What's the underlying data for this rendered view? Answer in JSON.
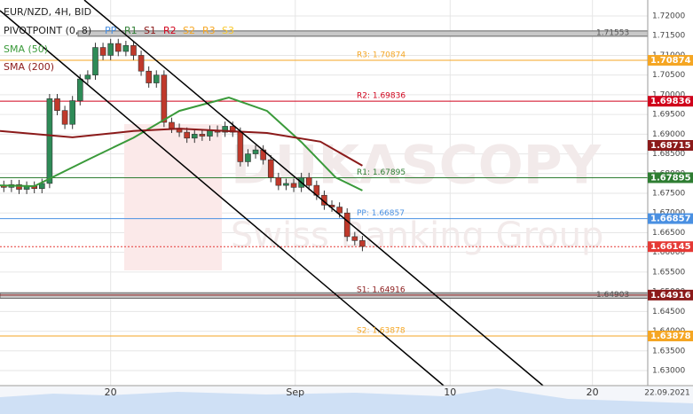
{
  "chart_data": {
    "type": "candlestick",
    "title": "EUR/NZD, 4H, BID",
    "date_label": "22.09.2021",
    "watermark": [
      "DUKASCOPY",
      "Swiss Banking Group"
    ],
    "pivot_legend": {
      "title": "PIVOTPOINT (0, 8)",
      "items": [
        {
          "name": "PP",
          "color": "#4a90e2"
        },
        {
          "name": "R1",
          "color": "#2e7d32"
        },
        {
          "name": "S1",
          "color": "#8b1a1a"
        },
        {
          "name": "R2",
          "color": "#d0021b"
        },
        {
          "name": "S2",
          "color": "#f5a623"
        },
        {
          "name": "R3",
          "color": "#f5a623"
        },
        {
          "name": "S3",
          "color": "#f8c830"
        }
      ]
    },
    "ylim": [
      1.62618,
      1.72405
    ],
    "yticks": [
      {
        "value": 1.72,
        "label": "1.72000"
      },
      {
        "value": 1.715,
        "label": "1.71500"
      },
      {
        "value": 1.71,
        "label": "1.71000"
      },
      {
        "value": 1.705,
        "label": "1.70500"
      },
      {
        "value": 1.7,
        "label": "1.70000"
      },
      {
        "value": 1.695,
        "label": "1.69500"
      },
      {
        "value": 1.69,
        "label": "1.69000"
      },
      {
        "value": 1.685,
        "label": "1.68500"
      },
      {
        "value": 1.68,
        "label": "1.68000"
      },
      {
        "value": 1.675,
        "label": "1.67500"
      },
      {
        "value": 1.67,
        "label": "1.67000"
      },
      {
        "value": 1.665,
        "label": "1.66500"
      },
      {
        "value": 1.66,
        "label": "1.66000"
      },
      {
        "value": 1.655,
        "label": "1.65500"
      },
      {
        "value": 1.65,
        "label": "1.65000"
      },
      {
        "value": 1.645,
        "label": "1.64500"
      },
      {
        "value": 1.64,
        "label": "1.64000"
      },
      {
        "value": 1.635,
        "label": "1.63500"
      },
      {
        "value": 1.63,
        "label": "1.63000"
      }
    ],
    "xlim": [
      0,
      169.8
    ],
    "xticks": [
      {
        "value": 29,
        "label": "20"
      },
      {
        "value": 77.4,
        "label": "Sep"
      },
      {
        "value": 118,
        "label": "10"
      },
      {
        "value": 155.3,
        "label": "20"
      }
    ],
    "up_color": "#2e8b57",
    "down_color": "#c0392b",
    "x": [
      1,
      3,
      5,
      7,
      9,
      11,
      13,
      15,
      17,
      19,
      21,
      23,
      25,
      27,
      29,
      31,
      33,
      35,
      37,
      39,
      41,
      43,
      45,
      47,
      49,
      51,
      53,
      55,
      57,
      59,
      61,
      63,
      65,
      67,
      69,
      71,
      73,
      75,
      77,
      79,
      81,
      83,
      85,
      87,
      89,
      91,
      93,
      95
    ],
    "open": [
      1.677,
      1.6765,
      1.6772,
      1.676,
      1.6768,
      1.6762,
      1.6775,
      1.699,
      1.696,
      1.6925,
      1.6985,
      1.704,
      1.705,
      1.712,
      1.71,
      1.713,
      1.711,
      1.7125,
      1.71,
      1.706,
      1.703,
      1.705,
      1.693,
      1.6915,
      1.6905,
      1.689,
      1.69,
      1.6895,
      1.691,
      1.6905,
      1.692,
      1.6905,
      1.683,
      1.685,
      1.686,
      1.6835,
      1.679,
      1.677,
      1.6775,
      1.6765,
      1.679,
      1.677,
      1.6745,
      1.672,
      1.6715,
      1.67,
      1.664,
      1.663
    ],
    "high": [
      1.6782,
      1.6784,
      1.6784,
      1.678,
      1.678,
      1.6787,
      1.7002,
      1.7002,
      1.6972,
      1.6997,
      1.7052,
      1.7062,
      1.7132,
      1.7132,
      1.7142,
      1.7142,
      1.7137,
      1.7137,
      1.7112,
      1.7072,
      1.7062,
      1.7062,
      1.6942,
      1.6927,
      1.6917,
      1.6912,
      1.6912,
      1.6922,
      1.6922,
      1.6932,
      1.6932,
      1.6917,
      1.6862,
      1.6872,
      1.6872,
      1.6847,
      1.6802,
      1.6787,
      1.6787,
      1.6802,
      1.6802,
      1.6782,
      1.6757,
      1.6732,
      1.6727,
      1.6712,
      1.6652,
      1.6642
    ],
    "low": [
      1.6753,
      1.6753,
      1.6748,
      1.6748,
      1.675,
      1.675,
      1.6763,
      1.6948,
      1.6913,
      1.6913,
      1.6973,
      1.7028,
      1.7038,
      1.7088,
      1.7088,
      1.7098,
      1.7098,
      1.7088,
      1.7048,
      1.7018,
      1.7018,
      1.6918,
      1.6903,
      1.6893,
      1.6878,
      1.6878,
      1.6883,
      1.6883,
      1.6893,
      1.6893,
      1.6893,
      1.6818,
      1.6818,
      1.6838,
      1.6823,
      1.6778,
      1.6758,
      1.6758,
      1.6753,
      1.6753,
      1.6758,
      1.6733,
      1.6708,
      1.6703,
      1.6688,
      1.6628,
      1.6618,
      1.6603
    ],
    "close": [
      1.6765,
      1.6772,
      1.676,
      1.6768,
      1.6762,
      1.6775,
      1.699,
      1.696,
      1.6925,
      1.6985,
      1.704,
      1.705,
      1.712,
      1.71,
      1.713,
      1.711,
      1.7125,
      1.71,
      1.706,
      1.703,
      1.705,
      1.693,
      1.6915,
      1.6905,
      1.689,
      1.69,
      1.6895,
      1.691,
      1.6905,
      1.692,
      1.6905,
      1.683,
      1.685,
      1.686,
      1.6835,
      1.679,
      1.677,
      1.6775,
      1.6765,
      1.679,
      1.677,
      1.6745,
      1.672,
      1.6715,
      1.67,
      1.664,
      1.663,
      1.6615
    ],
    "series": [
      {
        "name": "SMA (50)",
        "color": "#3a9a3a",
        "x": [
          0,
          9,
          23,
          35,
          47,
          60,
          70,
          79,
          88,
          95
        ],
        "values": [
          1.677,
          1.6768,
          1.6835,
          1.6891,
          1.6959,
          1.6993,
          1.6959,
          1.688,
          1.679,
          1.6757
        ]
      },
      {
        "name": "SMA (200)",
        "color": "#8b1a1a",
        "x": [
          0,
          19,
          35,
          47,
          70,
          84,
          95
        ],
        "values": [
          1.6908,
          1.6892,
          1.6908,
          1.6914,
          1.6903,
          1.6881,
          1.682
        ]
      }
    ],
    "pivot_levels": [
      {
        "label": "R3: 1.70874",
        "value": 1.70874,
        "color": "#f5a623"
      },
      {
        "label": "R2: 1.69836",
        "value": 1.69836,
        "color": "#d0021b"
      },
      {
        "label": "R1: 1.67895",
        "value": 1.67895,
        "color": "#2e7d32"
      },
      {
        "label": "PP: 1.66857",
        "value": 1.66857,
        "color": "#4a90e2"
      },
      {
        "label": "S1: 1.64916",
        "value": 1.64916,
        "color": "#8b1a1a"
      },
      {
        "label": "S2: 1.63878",
        "value": 1.63878,
        "color": "#f5a623"
      }
    ],
    "grey_levels": [
      1.71553,
      1.64903
    ],
    "price_labels": [
      {
        "value": 1.68715,
        "color": "#8b1a1a"
      },
      {
        "value": 1.66145,
        "color": "#e53935"
      }
    ],
    "current_price": 1.66145
  }
}
